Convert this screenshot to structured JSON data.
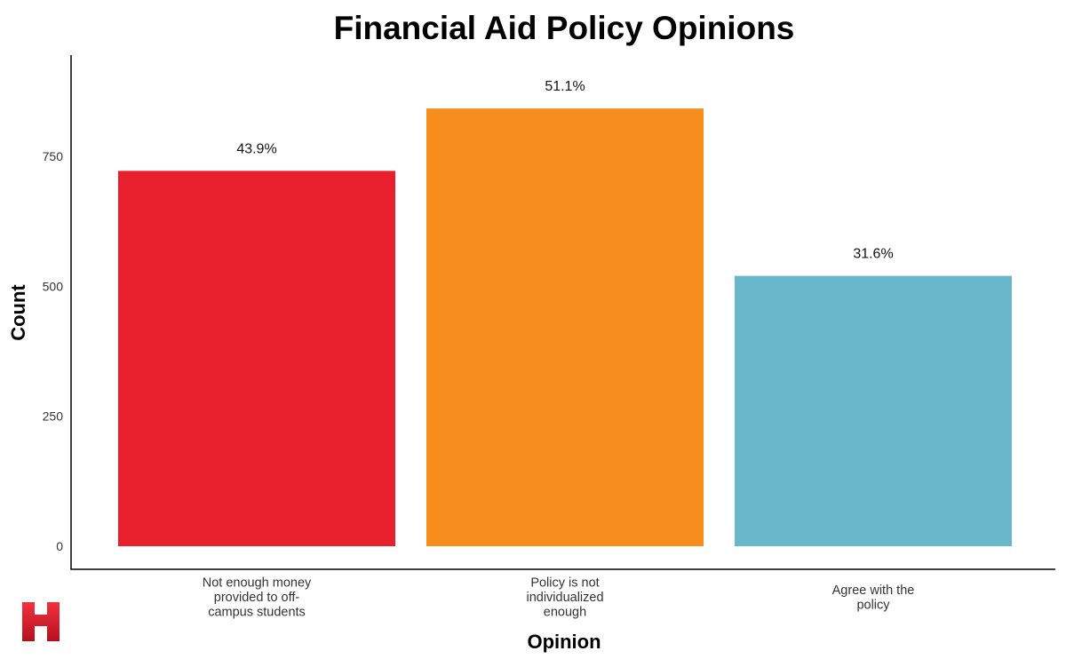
{
  "chart_data": {
    "type": "bar",
    "title": "Financial Aid Policy Opinions",
    "xlabel": "Opinion",
    "ylabel": "Count",
    "categories": [
      [
        "Not enough money",
        "provided to off-",
        "campus students"
      ],
      [
        "Policy is not",
        "individualized",
        "enough"
      ],
      [
        "Agree with the",
        "policy"
      ]
    ],
    "values": [
      722,
      842,
      520
    ],
    "data_labels": [
      "43.9%",
      "51.1%",
      "31.6%"
    ],
    "colors": [
      "#e8202d",
      "#f68d1d",
      "#68b7cb"
    ],
    "yticks": [
      0,
      250,
      500,
      750
    ],
    "ytick_labels": [
      "0",
      "250",
      "500",
      "750"
    ],
    "ylim": [
      0,
      940
    ],
    "grid": false,
    "legend": "none"
  },
  "logo": {
    "letter": "H",
    "color": "#d8182a"
  }
}
